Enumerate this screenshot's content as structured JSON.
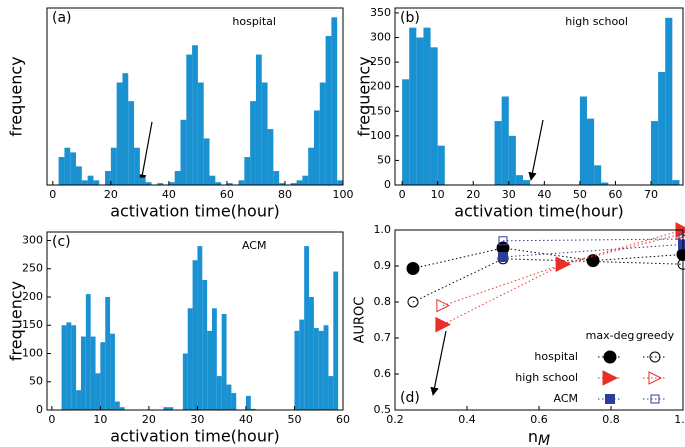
{
  "chart_data": [
    {
      "type": "histogram",
      "label": "(a)",
      "title": "hospital",
      "x_label": "activation time(hour)",
      "y_label": "frequency",
      "color": "#1a91d1",
      "bins": [
        0,
        2,
        4,
        6,
        8,
        10,
        12,
        14,
        16,
        18,
        20,
        22,
        24,
        26,
        28,
        30,
        32,
        34,
        36,
        38,
        40,
        42,
        44,
        46,
        48,
        50,
        52,
        54,
        56,
        58,
        60,
        62,
        64,
        66,
        68,
        70,
        72,
        74,
        76,
        78,
        80,
        82,
        84,
        86,
        88,
        90,
        92,
        94,
        96,
        98,
        100
      ],
      "counts": [
        0,
        30,
        40,
        35,
        20,
        5,
        10,
        5,
        0,
        15,
        40,
        110,
        120,
        90,
        40,
        8,
        3,
        0,
        2,
        0,
        3,
        15,
        70,
        140,
        150,
        110,
        50,
        10,
        3,
        0,
        2,
        0,
        5,
        30,
        90,
        140,
        110,
        60,
        15,
        2,
        0,
        2,
        5,
        10,
        40,
        80,
        110,
        160,
        180,
        5
      ],
      "xlim": [
        -2,
        100
      ],
      "xticks": [
        0,
        20,
        40,
        60,
        80,
        100
      ],
      "ylim": [
        0,
        190
      ]
    },
    {
      "type": "histogram",
      "label": "(b)",
      "title": "high school",
      "x_label": "activation time(hour)",
      "y_label": "frequency",
      "color": "#1a91d1",
      "bins": [
        0,
        2,
        4,
        6,
        8,
        10,
        12,
        14,
        16,
        18,
        20,
        22,
        24,
        26,
        28,
        30,
        32,
        34,
        36,
        38,
        40,
        42,
        44,
        46,
        48,
        50,
        52,
        54,
        56,
        58,
        60,
        62,
        64,
        66,
        68,
        70,
        72,
        74,
        76,
        78
      ],
      "counts": [
        215,
        320,
        300,
        320,
        280,
        80,
        0,
        0,
        0,
        0,
        0,
        0,
        0,
        130,
        180,
        100,
        20,
        10,
        0,
        0,
        0,
        0,
        0,
        0,
        0,
        180,
        135,
        40,
        5,
        0,
        0,
        0,
        0,
        0,
        0,
        130,
        230,
        340,
        10
      ],
      "xlim": [
        -2,
        79
      ],
      "xticks": [
        0,
        10,
        20,
        30,
        40,
        50,
        60,
        70
      ],
      "ylim": [
        0,
        360
      ],
      "yticks": [
        0,
        50,
        100,
        150,
        200,
        250,
        300,
        350
      ]
    },
    {
      "type": "histogram",
      "label": "(c)",
      "title": "ACM",
      "x_label": "activation time(hour)",
      "y_label": "frequency",
      "color": "#1a91d1",
      "bins": [
        0,
        1,
        2,
        3,
        4,
        5,
        6,
        7,
        8,
        9,
        10,
        11,
        12,
        13,
        14,
        15,
        16,
        17,
        18,
        19,
        20,
        21,
        22,
        23,
        24,
        25,
        26,
        27,
        28,
        29,
        30,
        31,
        32,
        33,
        34,
        35,
        36,
        37,
        38,
        39,
        40,
        41,
        42,
        43,
        44,
        45,
        46,
        47,
        48,
        49,
        50,
        51,
        52,
        53,
        54,
        55,
        56,
        57,
        58,
        59,
        60
      ],
      "counts": [
        0,
        0,
        150,
        155,
        150,
        35,
        130,
        205,
        130,
        65,
        120,
        200,
        135,
        15,
        5,
        0,
        0,
        0,
        0,
        0,
        0,
        0,
        0,
        5,
        5,
        0,
        0,
        100,
        180,
        265,
        290,
        230,
        140,
        180,
        60,
        170,
        45,
        30,
        0,
        0,
        25,
        2,
        0,
        0,
        0,
        0,
        0,
        0,
        0,
        0,
        140,
        160,
        290,
        200,
        145,
        140,
        150,
        60,
        245,
        0
      ],
      "xlim": [
        -1,
        60
      ],
      "xticks": [
        0,
        10,
        20,
        30,
        40,
        50,
        60
      ],
      "ylim": [
        0,
        315
      ],
      "yticks": [
        0,
        50,
        100,
        150,
        200,
        250,
        300
      ]
    },
    {
      "type": "scatter",
      "label": "(d)",
      "x_label": {
        "base": "n",
        "sub": "M"
      },
      "y_label": "AUROC",
      "methods": [
        "max-deg",
        "greedy"
      ],
      "series": [
        {
          "name": "hospital",
          "color": "#000000",
          "marker": "circle",
          "methods": [
            {
              "x": [
                0.25,
                0.5,
                0.75,
                1.0
              ],
              "y": [
                0.893,
                0.95,
                0.915,
                0.932
              ]
            },
            {
              "x": [
                0.25,
                0.5,
                1.0
              ],
              "y": [
                0.8,
                0.92,
                0.905
              ]
            }
          ]
        },
        {
          "name": "high school",
          "color": "#e8302a",
          "marker": "triangle",
          "methods": [
            {
              "x": [
                0.333,
                0.667,
                1.0
              ],
              "y": [
                0.737,
                0.905,
                1.0
              ]
            },
            {
              "x": [
                0.333,
                0.667,
                1.0
              ],
              "y": [
                0.79,
                0.905,
                0.99
              ]
            }
          ]
        },
        {
          "name": "ACM",
          "color": "#2d3d9a",
          "marker": "square",
          "methods": [
            {
              "x": [
                0.5,
                1.0
              ],
              "y": [
                0.925,
                0.96
              ]
            },
            {
              "x": [
                0.5,
                1.0
              ],
              "y": [
                0.97,
                0.975
              ]
            }
          ]
        }
      ],
      "xlim": [
        0.2,
        1.0
      ],
      "xticks": [
        0.2,
        0.4,
        0.6,
        0.8,
        {
          "value": 1.0,
          "label": "1.0"
        }
      ],
      "ylim": [
        0.5,
        1.0
      ],
      "yticks": [
        0.5,
        0.6,
        0.7,
        0.8,
        0.9,
        {
          "value": 1.0,
          "label": "1.0"
        }
      ]
    }
  ]
}
